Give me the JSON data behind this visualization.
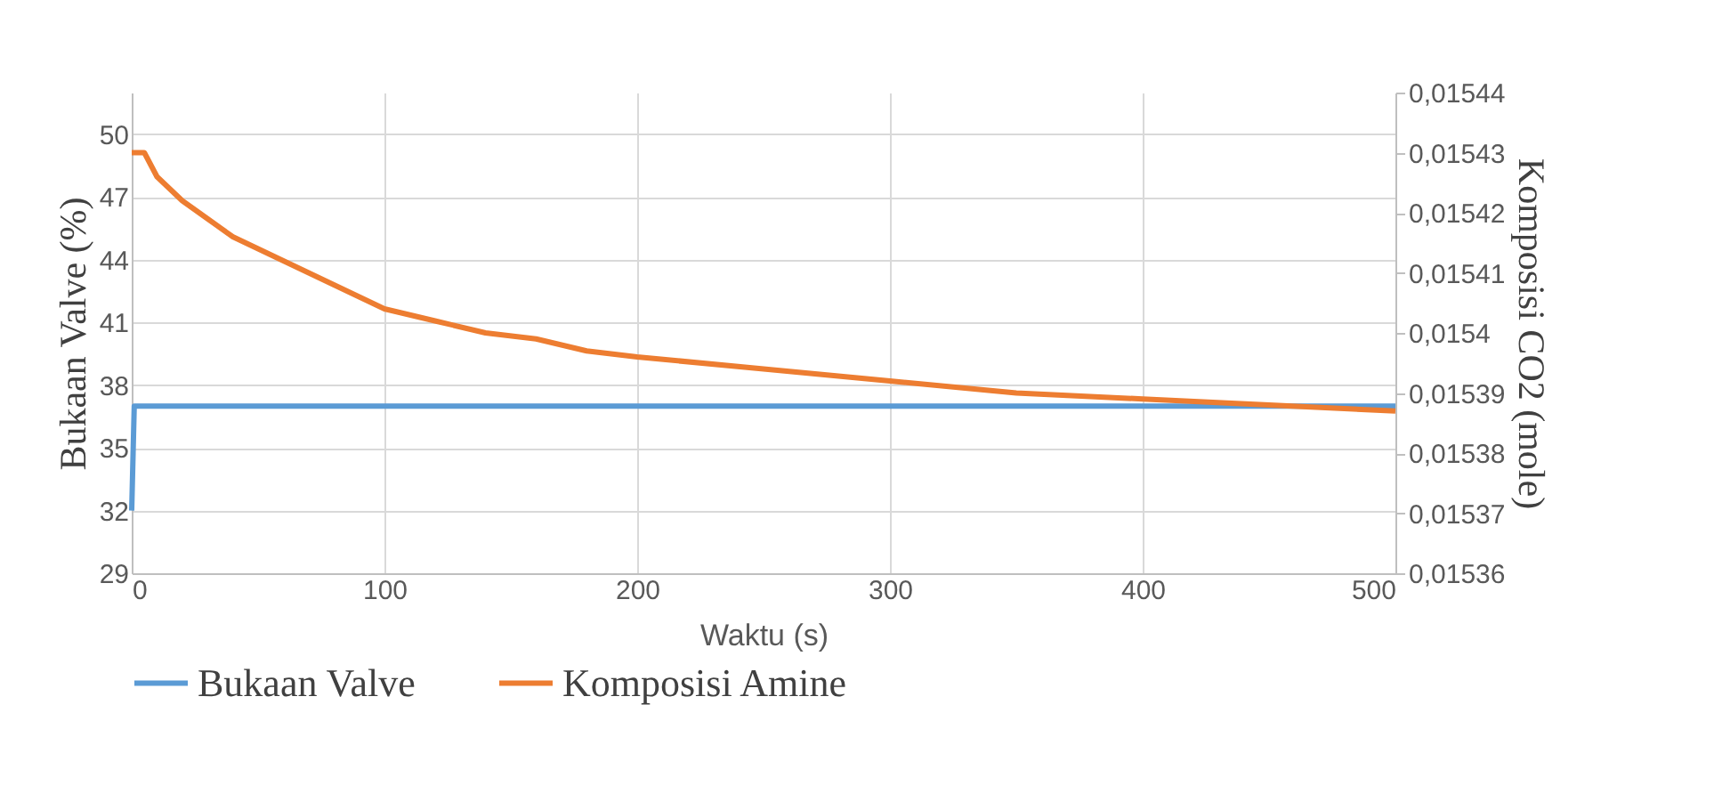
{
  "chart_data": {
    "type": "line",
    "xlabel": "Waktu (s)",
    "ylabel": "Bukaan Valve (%)",
    "y2label": "Komposisi CO2 (mole)",
    "xlim": [
      0,
      500
    ],
    "xticks": [
      0,
      100,
      200,
      300,
      400,
      500
    ],
    "ylim": [
      29,
      52
    ],
    "yticks": [
      29,
      32,
      35,
      38,
      41,
      44,
      47,
      50
    ],
    "y2lim": [
      0.01536,
      0.01544
    ],
    "y2ticks": [
      {
        "value": 0.01536,
        "label": "0,01536"
      },
      {
        "value": 0.01537,
        "label": "0,01537"
      },
      {
        "value": 0.01538,
        "label": "0,01538"
      },
      {
        "value": 0.01539,
        "label": "0,01539"
      },
      {
        "value": 0.0154,
        "label": "0,0154"
      },
      {
        "value": 0.01541,
        "label": "0,01541"
      },
      {
        "value": 0.01542,
        "label": "0,01542"
      },
      {
        "value": 0.01543,
        "label": "0,01543"
      },
      {
        "value": 0.01544,
        "label": "0,01544"
      }
    ],
    "grid": true,
    "legend": "bottom",
    "series": [
      {
        "name": "Bukaan Valve",
        "color": "#5b9bd5",
        "x": [
          0,
          1,
          500
        ],
        "values": [
          32,
          37,
          37
        ]
      },
      {
        "name": "Komposisi Amine",
        "color": "#ed7d31",
        "axis": "y2",
        "x": [
          0,
          5,
          10,
          20,
          30,
          40,
          50,
          60,
          70,
          80,
          90,
          100,
          120,
          140,
          160,
          180,
          200,
          250,
          300,
          350,
          400,
          450,
          500
        ],
        "values": [
          0.01543,
          0.01543,
          0.015426,
          0.015422,
          0.015419,
          0.015416,
          0.015414,
          0.015412,
          0.01541,
          0.015408,
          0.015406,
          0.015404,
          0.015402,
          0.0154,
          0.015399,
          0.015397,
          0.015396,
          0.015394,
          0.015392,
          0.01539,
          0.015389,
          0.015388,
          0.015387
        ]
      }
    ]
  }
}
